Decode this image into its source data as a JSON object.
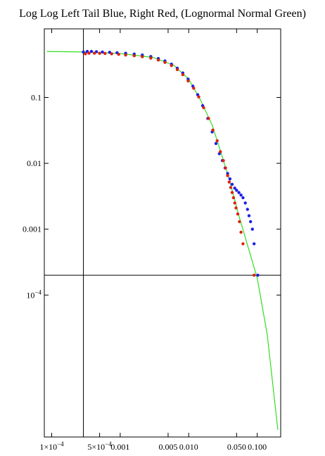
{
  "chart_data": {
    "type": "scatter",
    "title": "Log Log Left Tail Blue, Right Red, (Lognormal Normal Green)",
    "x_scale": "log",
    "y_scale": "log",
    "xlim": [
      7.8e-05,
      0.22
    ],
    "ylim": [
      7e-07,
      1.1
    ],
    "x_ticks": [
      {
        "value": 0.0001,
        "label": "1×10",
        "exp": "−4"
      },
      {
        "value": 0.0005,
        "label": "5×10",
        "exp": "−4"
      },
      {
        "value": 0.001,
        "label": "0.001",
        "exp": ""
      },
      {
        "value": 0.005,
        "label": "0.005",
        "exp": ""
      },
      {
        "value": 0.01,
        "label": "0.010",
        "exp": ""
      },
      {
        "value": 0.05,
        "label": "0.050",
        "exp": ""
      },
      {
        "value": 0.1,
        "label": "0.100",
        "exp": ""
      }
    ],
    "y_ticks": [
      {
        "value": 0.1,
        "label": "0.1",
        "exp": ""
      },
      {
        "value": 0.01,
        "label": "0.01",
        "exp": ""
      },
      {
        "value": 0.001,
        "label": "0.001",
        "exp": ""
      },
      {
        "value": 0.0001,
        "label": "10",
        "exp": "−4"
      }
    ],
    "reference_lines": {
      "vertical_x": 0.00029,
      "horizontal_y": 0.0002
    },
    "colors": {
      "blue": "#1f1fe6",
      "red": "#dd2211",
      "green": "#33dd22",
      "axis": "#000000"
    },
    "series": [
      {
        "color": "blue",
        "points": [
          [
            0.00029,
            0.49
          ],
          [
            0.00033,
            0.5
          ],
          [
            0.00038,
            0.5
          ],
          [
            0.00045,
            0.495
          ],
          [
            0.00055,
            0.49
          ],
          [
            0.0007,
            0.485
          ],
          [
            0.0009,
            0.478
          ],
          [
            0.0012,
            0.468
          ],
          [
            0.0016,
            0.456
          ],
          [
            0.0021,
            0.44
          ],
          [
            0.0028,
            0.418
          ],
          [
            0.0036,
            0.39
          ],
          [
            0.0045,
            0.358
          ],
          [
            0.0056,
            0.32
          ],
          [
            0.0068,
            0.278
          ],
          [
            0.0082,
            0.235
          ],
          [
            0.0098,
            0.19
          ],
          [
            0.0115,
            0.148
          ],
          [
            0.0135,
            0.11
          ],
          [
            0.016,
            0.075
          ],
          [
            0.019,
            0.048
          ],
          [
            0.022,
            0.03
          ],
          [
            0.025,
            0.02
          ],
          [
            0.028,
            0.014
          ],
          [
            0.031,
            0.011
          ],
          [
            0.034,
            0.0085
          ],
          [
            0.037,
            0.007
          ],
          [
            0.04,
            0.0058
          ],
          [
            0.043,
            0.0048
          ],
          [
            0.047,
            0.0042
          ],
          [
            0.05,
            0.0039
          ],
          [
            0.054,
            0.0036
          ],
          [
            0.058,
            0.0033
          ],
          [
            0.062,
            0.003
          ],
          [
            0.067,
            0.0025
          ],
          [
            0.072,
            0.002
          ],
          [
            0.076,
            0.0016
          ],
          [
            0.08,
            0.0013
          ],
          [
            0.085,
            0.001
          ],
          [
            0.09,
            0.0006
          ],
          [
            0.102,
            0.0002
          ]
        ]
      },
      {
        "color": "red",
        "points": [
          [
            0.00031,
            0.46
          ],
          [
            0.00035,
            0.47
          ],
          [
            0.00042,
            0.47
          ],
          [
            0.0005,
            0.468
          ],
          [
            0.0006,
            0.465
          ],
          [
            0.00075,
            0.46
          ],
          [
            0.00095,
            0.452
          ],
          [
            0.0012,
            0.44
          ],
          [
            0.0016,
            0.43
          ],
          [
            0.0021,
            0.415
          ],
          [
            0.0028,
            0.395
          ],
          [
            0.0036,
            0.37
          ],
          [
            0.0045,
            0.34
          ],
          [
            0.0056,
            0.305
          ],
          [
            0.0068,
            0.265
          ],
          [
            0.0082,
            0.222
          ],
          [
            0.0098,
            0.178
          ],
          [
            0.0118,
            0.138
          ],
          [
            0.014,
            0.102
          ],
          [
            0.0165,
            0.07
          ],
          [
            0.0195,
            0.048
          ],
          [
            0.0225,
            0.032
          ],
          [
            0.026,
            0.022
          ],
          [
            0.029,
            0.015
          ],
          [
            0.032,
            0.011
          ],
          [
            0.0345,
            0.0085
          ],
          [
            0.037,
            0.0065
          ],
          [
            0.039,
            0.0052
          ],
          [
            0.041,
            0.0043
          ],
          [
            0.043,
            0.0036
          ],
          [
            0.045,
            0.003
          ],
          [
            0.047,
            0.0025
          ],
          [
            0.049,
            0.0021
          ],
          [
            0.052,
            0.0017
          ],
          [
            0.055,
            0.0013
          ],
          [
            0.058,
            0.0009
          ],
          [
            0.062,
            0.0006
          ],
          [
            0.09,
            0.0002
          ]
        ]
      },
      {
        "color": "green",
        "line": true,
        "points": [
          [
            8.5e-05,
            0.5
          ],
          [
            0.00029,
            0.49
          ],
          [
            0.001,
            0.465
          ],
          [
            0.003,
            0.405
          ],
          [
            0.006,
            0.31
          ],
          [
            0.01,
            0.19
          ],
          [
            0.015,
            0.09
          ],
          [
            0.022,
            0.038
          ],
          [
            0.03,
            0.014
          ],
          [
            0.04,
            0.0052
          ],
          [
            0.055,
            0.0015
          ],
          [
            0.075,
            0.0005
          ],
          [
            0.1,
            0.00018
          ],
          [
            0.14,
            2.5e-05
          ],
          [
            0.2,
            9e-07
          ]
        ]
      }
    ]
  }
}
